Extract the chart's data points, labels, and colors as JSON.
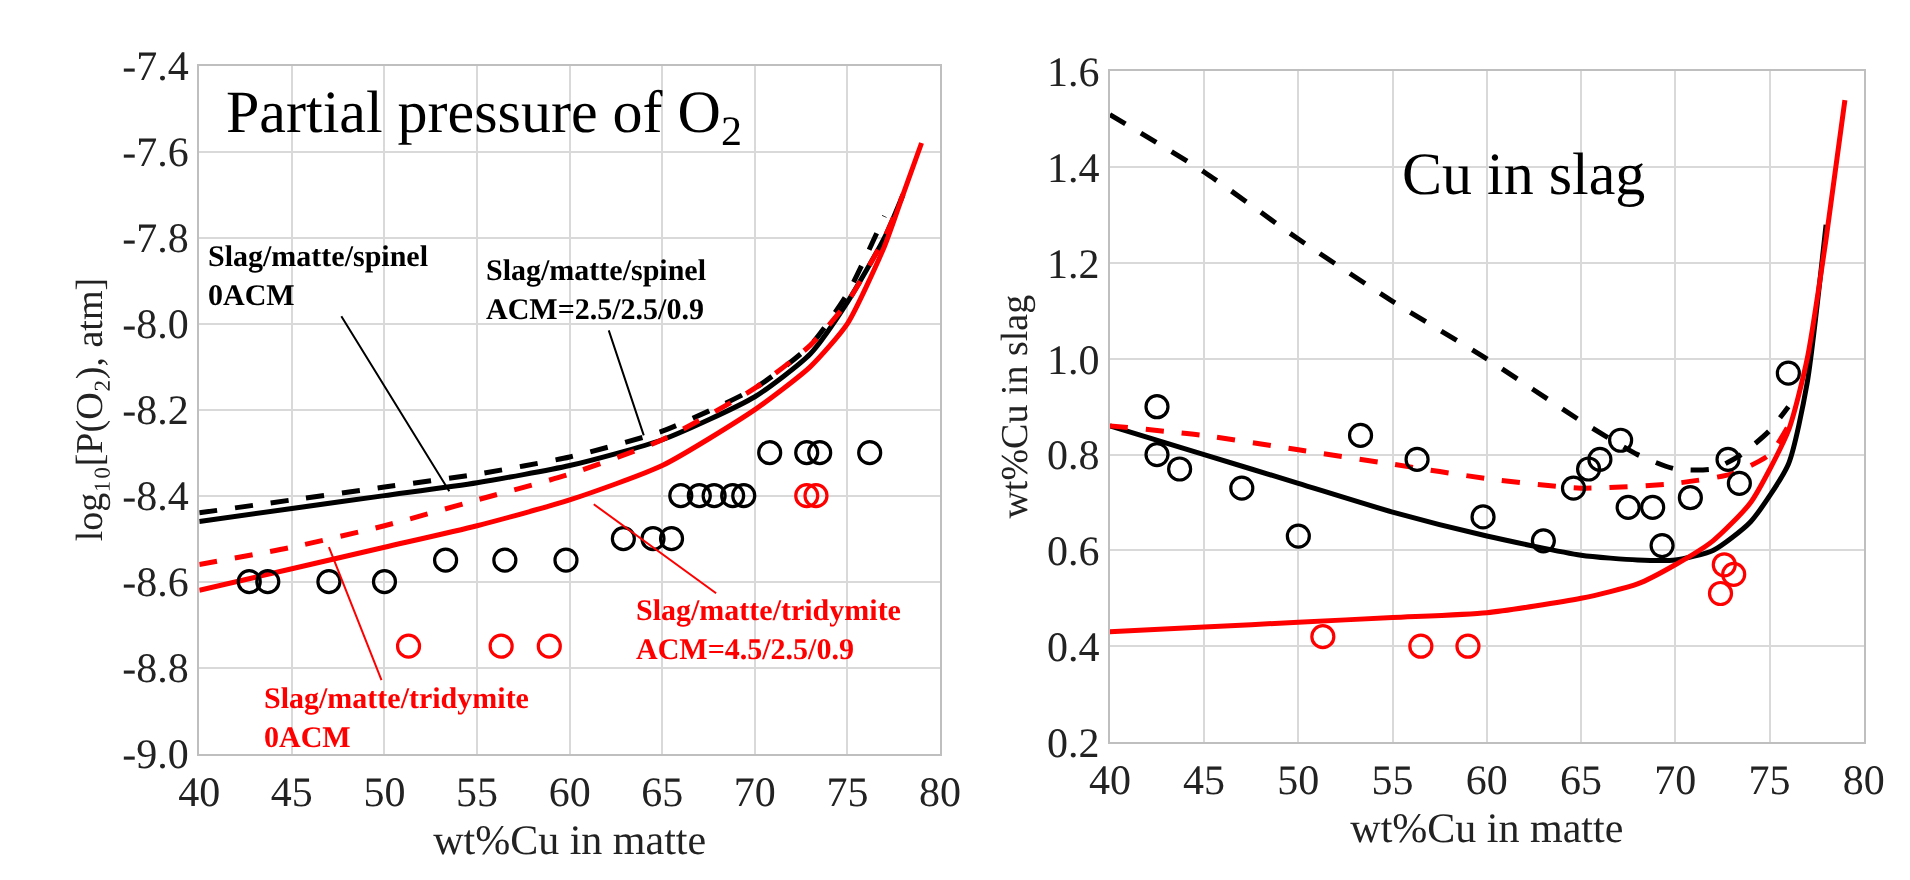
{
  "chart_data": [
    {
      "type": "line",
      "title": "Partial pressure of O$_{2}$",
      "xlabel": "wt%Cu in matte",
      "ylabel": "log₁₀[P(O₂), atm]",
      "xlim": [
        40,
        80
      ],
      "xticks": [
        40,
        45,
        50,
        55,
        60,
        65,
        70,
        75,
        80
      ],
      "ylim": [
        -9.0,
        -7.4
      ],
      "yticks": [
        {
          "value": -9.0,
          "label": "-9.0"
        },
        {
          "value": -8.8,
          "label": "-8.8"
        },
        {
          "value": -8.6,
          "label": "-8.6"
        },
        {
          "value": -8.4,
          "label": "-8.4"
        },
        {
          "value": -8.2,
          "label": "-8.2"
        },
        {
          "value": -8.0,
          "label": "-8.0"
        },
        {
          "value": -7.8,
          "label": "-7.8"
        },
        {
          "value": -7.6,
          "label": "-7.6"
        },
        {
          "value": -7.4,
          "label": "-7.4"
        }
      ],
      "grid": true,
      "series": [
        {
          "line_style": "solid",
          "color": "#000000",
          "x": [
            40,
            45,
            50,
            55,
            60,
            65,
            70,
            73,
            75,
            77,
            78
          ],
          "values": [
            -8.46,
            -8.43,
            -8.4,
            -8.37,
            -8.33,
            -8.27,
            -8.17,
            -8.07,
            -7.95,
            -7.8,
            -7.7
          ]
        },
        {
          "line_style": "dashed",
          "color": "#000000",
          "x": [
            40,
            45,
            50,
            55,
            60,
            65,
            70,
            73,
            75,
            77
          ],
          "values": [
            -8.44,
            -8.41,
            -8.38,
            -8.35,
            -8.31,
            -8.25,
            -8.15,
            -8.05,
            -7.93,
            -7.75
          ]
        },
        {
          "line_style": "dashed",
          "color": "#ff0000",
          "x": [
            40,
            45,
            50,
            55,
            60,
            65,
            70,
            73,
            75,
            77,
            78
          ],
          "values": [
            -8.56,
            -8.52,
            -8.47,
            -8.41,
            -8.35,
            -8.27,
            -8.15,
            -8.05,
            -7.95,
            -7.8,
            -7.7
          ]
        },
        {
          "line_style": "solid",
          "color": "#ff0000",
          "x": [
            40,
            45,
            50,
            55,
            60,
            65,
            70,
            73,
            75,
            77,
            78,
            79
          ],
          "values": [
            -8.62,
            -8.57,
            -8.52,
            -8.47,
            -8.41,
            -8.33,
            -8.2,
            -8.1,
            -8.0,
            -7.82,
            -7.7,
            -7.58
          ]
        },
        {
          "type": "scatter",
          "marker": "circle",
          "color": "#000000",
          "x": [
            42.7,
            43.7,
            47,
            50,
            53.3,
            56.5,
            59.8,
            62.9,
            64.5,
            65.5,
            66,
            67,
            67.8,
            68.8,
            69.4,
            70.8,
            72.8,
            73.5,
            76.2
          ],
          "values": [
            -8.6,
            -8.6,
            -8.6,
            -8.6,
            -8.55,
            -8.55,
            -8.55,
            -8.5,
            -8.5,
            -8.5,
            -8.4,
            -8.4,
            -8.4,
            -8.4,
            -8.4,
            -8.3,
            -8.3,
            -8.3,
            -8.3
          ]
        },
        {
          "type": "scatter",
          "marker": "circle",
          "color": "#ff0000",
          "x": [
            51.3,
            56.3,
            58.9,
            72.8,
            73.3
          ],
          "values": [
            -8.75,
            -8.75,
            -8.75,
            -8.4,
            -8.4
          ]
        }
      ],
      "annotations": [
        {
          "text": "Slag/matte/spinel\n0ACM",
          "x": 53.5,
          "y": -8.39
        },
        {
          "text": "Slag/matte/spinel\nACM=2.5/2.5/0.9",
          "x": 64,
          "y": -8.26
        },
        {
          "text": "Slag/matte/tridymite\nACM=4.5/2.5/0.9",
          "x": 61.3,
          "y": -8.42
        },
        {
          "text": "Slag/matte/tridymite\n0ACM",
          "x": 47,
          "y": -8.52
        }
      ]
    },
    {
      "type": "line",
      "title": "Cu in slag",
      "xlabel": "wt%Cu in matte",
      "ylabel": "wt%Cu in slag",
      "xlim": [
        40,
        80
      ],
      "xticks": [
        40,
        45,
        50,
        55,
        60,
        65,
        70,
        75,
        80
      ],
      "ylim": [
        0.2,
        1.6
      ],
      "yticks": [
        {
          "value": 0.2,
          "label": "0.2"
        },
        {
          "value": 0.4,
          "label": "0.4"
        },
        {
          "value": 0.6,
          "label": "0.6"
        },
        {
          "value": 0.8,
          "label": "0.8"
        },
        {
          "value": 1.0,
          "label": "1.0"
        },
        {
          "value": 1.2,
          "label": "1.2"
        },
        {
          "value": 1.4,
          "label": "1.4"
        },
        {
          "value": 1.6,
          "label": "1.6"
        }
      ],
      "grid": true,
      "series": [
        {
          "line_style": "dashed",
          "color": "#000000",
          "x": [
            40,
            45,
            50,
            55,
            60,
            65,
            68,
            70,
            72,
            73.5,
            75,
            76
          ],
          "values": [
            1.51,
            1.39,
            1.25,
            1.12,
            1.0,
            0.87,
            0.8,
            0.77,
            0.77,
            0.8,
            0.85,
            0.9
          ]
        },
        {
          "line_style": "solid",
          "color": "#000000",
          "x": [
            40,
            45,
            50,
            55,
            60,
            65,
            68,
            70,
            72,
            74,
            76,
            77,
            78
          ],
          "values": [
            0.86,
            0.8,
            0.74,
            0.68,
            0.63,
            0.59,
            0.58,
            0.58,
            0.6,
            0.66,
            0.78,
            0.95,
            1.28
          ]
        },
        {
          "line_style": "dashed",
          "color": "#ff0000",
          "x": [
            40,
            45,
            50,
            55,
            60,
            65,
            70,
            73,
            75,
            76
          ],
          "values": [
            0.86,
            0.84,
            0.81,
            0.78,
            0.75,
            0.73,
            0.74,
            0.76,
            0.8,
            0.86
          ]
        },
        {
          "line_style": "solid",
          "color": "#ff0000",
          "x": [
            40,
            45,
            50,
            55,
            60,
            65,
            68,
            70,
            72,
            74,
            76,
            77,
            78,
            79
          ],
          "values": [
            0.43,
            0.44,
            0.45,
            0.46,
            0.47,
            0.5,
            0.53,
            0.57,
            0.62,
            0.7,
            0.85,
            1.0,
            1.25,
            1.54
          ]
        },
        {
          "type": "scatter",
          "marker": "circle",
          "color": "#000000",
          "x": [
            42.5,
            42.5,
            43.7,
            47,
            50,
            53.3,
            56.3,
            59.8,
            63,
            64.6,
            65.4,
            66,
            67.1,
            67.5,
            68.8,
            69.3,
            70.8,
            72.8,
            73.4,
            76
          ],
          "values": [
            0.9,
            0.8,
            0.77,
            0.73,
            0.63,
            0.84,
            0.79,
            0.67,
            0.62,
            0.73,
            0.77,
            0.79,
            0.83,
            0.69,
            0.69,
            0.61,
            0.71,
            0.79,
            0.74,
            0.97
          ]
        },
        {
          "type": "scatter",
          "marker": "circle",
          "color": "#ff0000",
          "x": [
            51.3,
            56.5,
            59,
            72.6,
            73.1,
            72.4
          ],
          "values": [
            0.42,
            0.4,
            0.4,
            0.57,
            0.55,
            0.51
          ]
        }
      ]
    }
  ]
}
